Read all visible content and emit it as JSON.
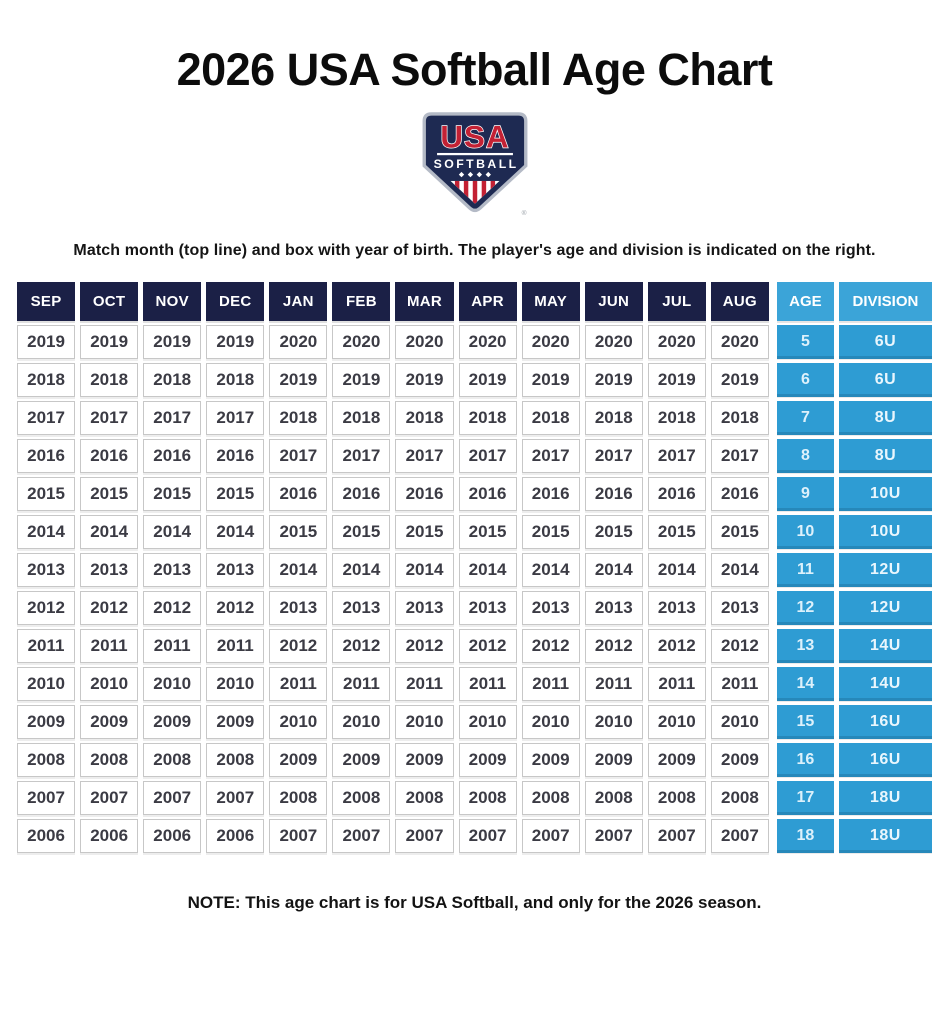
{
  "title": "2026 USA Softball Age Chart",
  "logo": {
    "usa": "USA",
    "softball": "SOFTBALL",
    "registered": "®"
  },
  "instruction": "Match month (top line) and box with year of birth. The player's age and division is indicated on the right.",
  "note": "NOTE: This age chart is for USA Softball, and only for the 2026 season.",
  "colors": {
    "header_navy": "#1b2046",
    "header_blue": "#3ba4d8",
    "cell_blue": "#2e9cd3",
    "logo_navy": "#1e2a52",
    "logo_red": "#c32134",
    "year_cell_border": "#c7c7c7"
  },
  "chart_data": {
    "type": "table",
    "title": "2026 USA Softball Age Chart",
    "columns": [
      "SEP",
      "OCT",
      "NOV",
      "DEC",
      "JAN",
      "FEB",
      "MAR",
      "APR",
      "MAY",
      "JUN",
      "JUL",
      "AUG",
      "AGE",
      "DIVISION"
    ],
    "rows": [
      {
        "months": [
          "2019",
          "2019",
          "2019",
          "2019",
          "2020",
          "2020",
          "2020",
          "2020",
          "2020",
          "2020",
          "2020",
          "2020"
        ],
        "age": "5",
        "division": "6U"
      },
      {
        "months": [
          "2018",
          "2018",
          "2018",
          "2018",
          "2019",
          "2019",
          "2019",
          "2019",
          "2019",
          "2019",
          "2019",
          "2019"
        ],
        "age": "6",
        "division": "6U"
      },
      {
        "months": [
          "2017",
          "2017",
          "2017",
          "2017",
          "2018",
          "2018",
          "2018",
          "2018",
          "2018",
          "2018",
          "2018",
          "2018"
        ],
        "age": "7",
        "division": "8U"
      },
      {
        "months": [
          "2016",
          "2016",
          "2016",
          "2016",
          "2017",
          "2017",
          "2017",
          "2017",
          "2017",
          "2017",
          "2017",
          "2017"
        ],
        "age": "8",
        "division": "8U"
      },
      {
        "months": [
          "2015",
          "2015",
          "2015",
          "2015",
          "2016",
          "2016",
          "2016",
          "2016",
          "2016",
          "2016",
          "2016",
          "2016"
        ],
        "age": "9",
        "division": "10U"
      },
      {
        "months": [
          "2014",
          "2014",
          "2014",
          "2014",
          "2015",
          "2015",
          "2015",
          "2015",
          "2015",
          "2015",
          "2015",
          "2015"
        ],
        "age": "10",
        "division": "10U"
      },
      {
        "months": [
          "2013",
          "2013",
          "2013",
          "2013",
          "2014",
          "2014",
          "2014",
          "2014",
          "2014",
          "2014",
          "2014",
          "2014"
        ],
        "age": "11",
        "division": "12U"
      },
      {
        "months": [
          "2012",
          "2012",
          "2012",
          "2012",
          "2013",
          "2013",
          "2013",
          "2013",
          "2013",
          "2013",
          "2013",
          "2013"
        ],
        "age": "12",
        "division": "12U"
      },
      {
        "months": [
          "2011",
          "2011",
          "2011",
          "2011",
          "2012",
          "2012",
          "2012",
          "2012",
          "2012",
          "2012",
          "2012",
          "2012"
        ],
        "age": "13",
        "division": "14U"
      },
      {
        "months": [
          "2010",
          "2010",
          "2010",
          "2010",
          "2011",
          "2011",
          "2011",
          "2011",
          "2011",
          "2011",
          "2011",
          "2011"
        ],
        "age": "14",
        "division": "14U"
      },
      {
        "months": [
          "2009",
          "2009",
          "2009",
          "2009",
          "2010",
          "2010",
          "2010",
          "2010",
          "2010",
          "2010",
          "2010",
          "2010"
        ],
        "age": "15",
        "division": "16U"
      },
      {
        "months": [
          "2008",
          "2008",
          "2008",
          "2008",
          "2009",
          "2009",
          "2009",
          "2009",
          "2009",
          "2009",
          "2009",
          "2009"
        ],
        "age": "16",
        "division": "16U"
      },
      {
        "months": [
          "2007",
          "2007",
          "2007",
          "2007",
          "2008",
          "2008",
          "2008",
          "2008",
          "2008",
          "2008",
          "2008",
          "2008"
        ],
        "age": "17",
        "division": "18U"
      },
      {
        "months": [
          "2006",
          "2006",
          "2006",
          "2006",
          "2007",
          "2007",
          "2007",
          "2007",
          "2007",
          "2007",
          "2007",
          "2007"
        ],
        "age": "18",
        "division": "18U"
      }
    ]
  }
}
